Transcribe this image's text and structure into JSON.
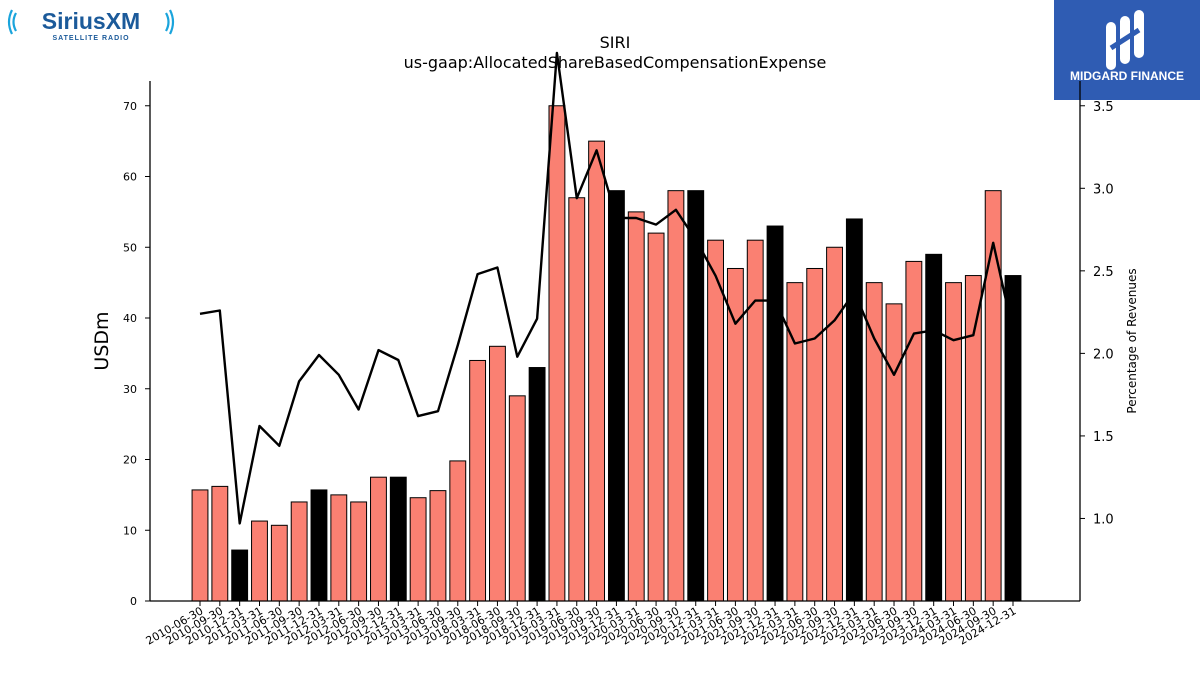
{
  "branding": {
    "left_logo_text": "SiriusXM",
    "left_logo_sub": "SATELLITE RADIO",
    "right_logo_text": "MIDGARD FINANCE",
    "left_color": "#1b5a9a",
    "left_accent": "#1aa4dc",
    "right_bg": "#2f5cb3"
  },
  "chart_data": {
    "type": "bar",
    "title": "SIRI",
    "subtitle": "us-gaap:AllocatedShareBasedCompensationExpense",
    "ylabel": "USDm",
    "y2label": "Percentage of Revenues",
    "ylim": [
      0,
      73.5
    ],
    "y2lim": [
      0.5,
      3.65
    ],
    "yticks": [
      0,
      10,
      20,
      30,
      40,
      50,
      60,
      70
    ],
    "y2ticks": [
      1.0,
      1.5,
      2.0,
      2.5,
      3.0,
      3.5
    ],
    "categories": [
      "2010-06-30",
      "2010-09-30",
      "2010-12-31",
      "2011-03-31",
      "2011-06-30",
      "2011-09-30",
      "2011-12-31",
      "2012-03-31",
      "2012-06-30",
      "2012-09-30",
      "2012-12-31",
      "2013-03-31",
      "2013-06-30",
      "2013-09-30",
      "2018-03-31",
      "2018-06-30",
      "2018-09-30",
      "2018-12-31",
      "2019-03-31",
      "2019-06-30",
      "2019-09-30",
      "2019-12-31",
      "2020-03-31",
      "2020-06-30",
      "2020-09-30",
      "2020-12-31",
      "2021-03-31",
      "2021-06-30",
      "2021-09-30",
      "2021-12-31",
      "2022-03-31",
      "2022-06-30",
      "2022-09-30",
      "2022-12-31",
      "2023-03-31",
      "2023-06-30",
      "2023-09-30",
      "2023-12-31",
      "2024-03-31",
      "2024-06-30",
      "2024-09-30",
      "2024-12-31"
    ],
    "series": [
      {
        "type": "bar",
        "values": [
          15.7,
          16.2,
          7.2,
          11.3,
          10.7,
          14.0,
          15.7,
          15.0,
          14.0,
          17.5,
          17.5,
          14.6,
          15.6,
          19.8,
          34.0,
          36.0,
          29.0,
          33.0,
          70.0,
          57.0,
          65.0,
          58.0,
          55.0,
          52.0,
          58.0,
          58.0,
          51.0,
          47.0,
          51.0,
          53.0,
          45.0,
          47.0,
          50.0,
          54.0,
          45.0,
          42.0,
          48.0,
          49.0,
          45.0,
          46.0,
          58.0,
          46.0
        ],
        "colors": [
          "#fa8072",
          "#fa8072",
          "#000000",
          "#fa8072",
          "#fa8072",
          "#fa8072",
          "#000000",
          "#fa8072",
          "#fa8072",
          "#fa8072",
          "#000000",
          "#fa8072",
          "#fa8072",
          "#fa8072",
          "#fa8072",
          "#fa8072",
          "#fa8072",
          "#000000",
          "#fa8072",
          "#fa8072",
          "#fa8072",
          "#000000",
          "#fa8072",
          "#fa8072",
          "#fa8072",
          "#000000",
          "#fa8072",
          "#fa8072",
          "#fa8072",
          "#000000",
          "#fa8072",
          "#fa8072",
          "#fa8072",
          "#000000",
          "#fa8072",
          "#fa8072",
          "#fa8072",
          "#000000",
          "#fa8072",
          "#fa8072",
          "#fa8072",
          "#000000"
        ]
      },
      {
        "type": "line",
        "axis": "right",
        "color": "#000000",
        "values": [
          2.24,
          2.26,
          0.97,
          1.56,
          1.44,
          1.83,
          1.99,
          1.87,
          1.66,
          2.02,
          1.96,
          1.62,
          1.65,
          2.05,
          2.48,
          2.52,
          1.98,
          2.21,
          3.82,
          2.94,
          3.23,
          2.82,
          2.82,
          2.78,
          2.87,
          2.69,
          2.47,
          2.18,
          2.32,
          2.32,
          2.06,
          2.09,
          2.2,
          2.37,
          2.09,
          1.87,
          2.12,
          2.14,
          2.08,
          2.11,
          2.67,
          2.13
        ]
      }
    ],
    "grid": false,
    "legend": "none"
  }
}
